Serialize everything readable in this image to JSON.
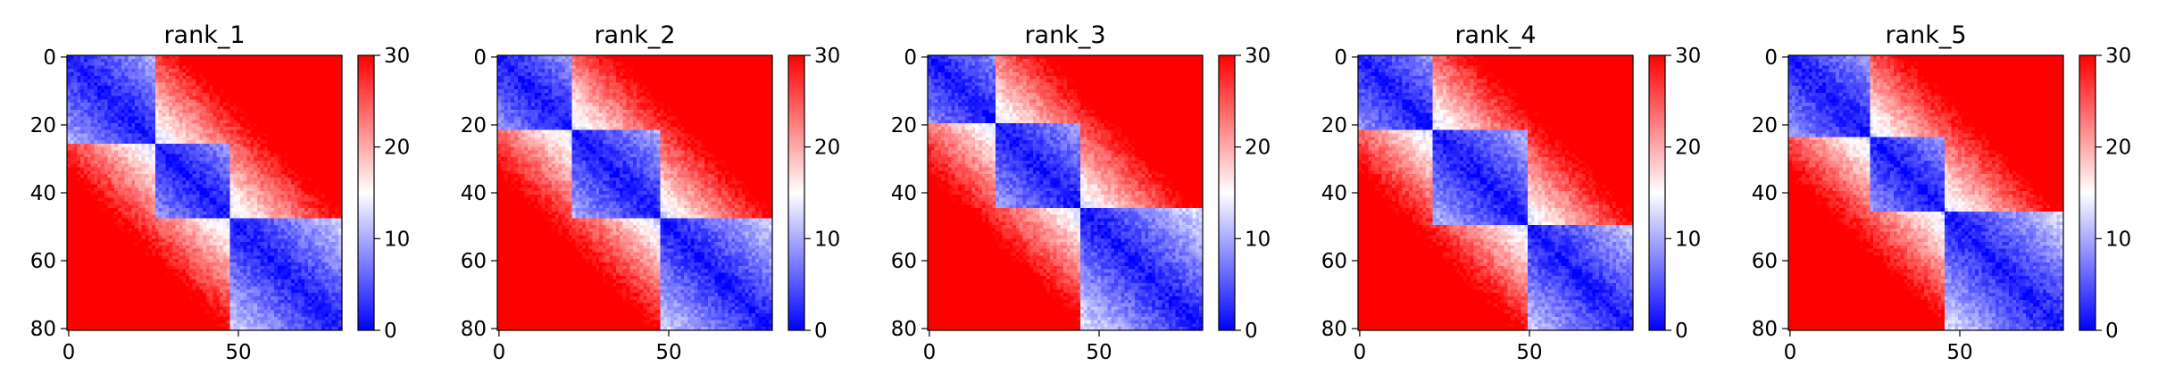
{
  "chart_data": [
    {
      "type": "heatmap",
      "title": "rank_1",
      "n": 81,
      "boundaries": [
        26,
        48
      ],
      "x_ticks": [
        0,
        50
      ],
      "y_ticks": [
        0,
        20,
        40,
        60,
        80
      ],
      "colorbar": {
        "min": 0,
        "max": 30,
        "ticks": [
          0,
          10,
          20,
          30
        ],
        "colors": [
          "#0000ff",
          "#ffffff",
          "#ff0000"
        ]
      }
    },
    {
      "type": "heatmap",
      "title": "rank_2",
      "n": 81,
      "boundaries": [
        22,
        48
      ],
      "x_ticks": [
        0,
        50
      ],
      "y_ticks": [
        0,
        20,
        40,
        60,
        80
      ],
      "colorbar": {
        "min": 0,
        "max": 30,
        "ticks": [
          0,
          10,
          20,
          30
        ],
        "colors": [
          "#0000ff",
          "#ffffff",
          "#ff0000"
        ]
      }
    },
    {
      "type": "heatmap",
      "title": "rank_3",
      "n": 81,
      "boundaries": [
        20,
        45
      ],
      "x_ticks": [
        0,
        50
      ],
      "y_ticks": [
        0,
        20,
        40,
        60,
        80
      ],
      "colorbar": {
        "min": 0,
        "max": 30,
        "ticks": [
          0,
          10,
          20,
          30
        ],
        "colors": [
          "#0000ff",
          "#ffffff",
          "#ff0000"
        ]
      }
    },
    {
      "type": "heatmap",
      "title": "rank_4",
      "n": 81,
      "boundaries": [
        22,
        50
      ],
      "x_ticks": [
        0,
        50
      ],
      "y_ticks": [
        0,
        20,
        40,
        60,
        80
      ],
      "colorbar": {
        "min": 0,
        "max": 30,
        "ticks": [
          0,
          10,
          20,
          30
        ],
        "colors": [
          "#0000ff",
          "#ffffff",
          "#ff0000"
        ]
      }
    },
    {
      "type": "heatmap",
      "title": "rank_5",
      "n": 81,
      "boundaries": [
        24,
        46
      ],
      "x_ticks": [
        0,
        50
      ],
      "y_ticks": [
        0,
        20,
        40,
        60,
        80
      ],
      "colorbar": {
        "min": 0,
        "max": 30,
        "ticks": [
          0,
          10,
          20,
          30
        ],
        "colors": [
          "#0000ff",
          "#ffffff",
          "#ff0000"
        ]
      }
    }
  ]
}
